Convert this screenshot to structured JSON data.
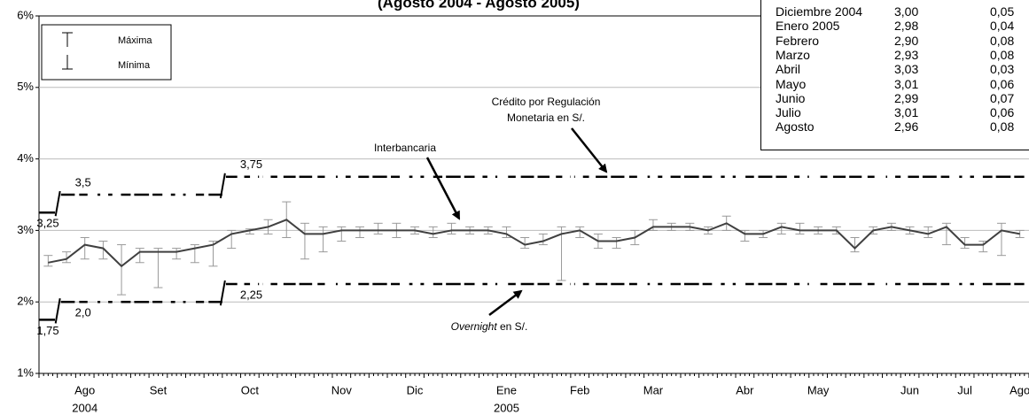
{
  "chart_data": {
    "type": "line",
    "title": "(Agosto 2004 - Agosto 2005)",
    "categories": [
      null,
      null,
      "Ago",
      null,
      null,
      null,
      "Set",
      null,
      null,
      null,
      null,
      "Oct",
      null,
      null,
      null,
      null,
      "Nov",
      null,
      null,
      null,
      "Dic",
      null,
      null,
      null,
      null,
      "Ene",
      null,
      null,
      null,
      "Feb",
      null,
      null,
      null,
      "Mar",
      null,
      null,
      null,
      null,
      "Abr",
      null,
      null,
      null,
      "May",
      null,
      null,
      null,
      null,
      "Jun",
      null,
      null,
      "Jul",
      null,
      null,
      "Ago"
    ],
    "category_years": [
      null,
      null,
      "2004",
      null,
      null,
      null,
      null,
      null,
      null,
      null,
      null,
      null,
      null,
      null,
      null,
      null,
      null,
      null,
      null,
      null,
      null,
      null,
      null,
      null,
      null,
      "2005",
      null,
      null,
      null,
      null,
      null,
      null,
      null,
      null,
      null,
      null,
      null,
      null,
      null,
      null,
      null,
      null,
      null,
      null,
      null,
      null,
      null,
      null,
      null,
      null,
      null,
      null,
      null,
      null
    ],
    "series": [
      {
        "color": "#404040",
        "values": [
          2.55,
          2.6,
          2.8,
          2.75,
          2.5,
          2.7,
          2.7,
          2.7,
          2.75,
          2.8,
          2.95,
          3.0,
          3.05,
          3.15,
          2.95,
          2.95,
          3.0,
          3.0,
          3.0,
          3.0,
          3.0,
          2.95,
          3.0,
          3.0,
          3.0,
          2.95,
          2.8,
          2.85,
          2.95,
          3.0,
          2.85,
          2.85,
          2.9,
          3.05,
          3.05,
          3.05,
          3.0,
          3.1,
          2.95,
          2.95,
          3.05,
          3.0,
          3.0,
          3.0,
          2.75,
          3.0,
          3.05,
          3.0,
          2.95,
          3.05,
          2.8,
          2.8,
          3.0,
          2.95
        ],
        "max": [
          2.65,
          2.7,
          2.9,
          2.85,
          2.8,
          2.75,
          2.75,
          2.75,
          2.8,
          2.85,
          3.0,
          3.02,
          3.15,
          3.4,
          3.1,
          3.05,
          3.05,
          3.05,
          3.1,
          3.1,
          3.05,
          3.05,
          3.1,
          3.05,
          3.05,
          3.05,
          2.9,
          2.95,
          3.05,
          3.05,
          2.95,
          2.9,
          3.0,
          3.15,
          3.1,
          3.1,
          3.05,
          3.2,
          3.0,
          3.0,
          3.1,
          3.1,
          3.05,
          3.05,
          2.9,
          3.05,
          3.1,
          3.05,
          3.05,
          3.1,
          2.9,
          2.85,
          3.1,
          3.0
        ],
        "min": [
          2.5,
          2.55,
          2.6,
          2.6,
          2.1,
          2.55,
          2.2,
          2.6,
          2.55,
          2.5,
          2.75,
          2.95,
          2.95,
          2.9,
          2.6,
          2.7,
          2.85,
          2.9,
          2.95,
          2.9,
          2.95,
          2.9,
          2.95,
          2.95,
          2.95,
          2.9,
          2.75,
          2.8,
          2.3,
          2.9,
          2.75,
          2.75,
          2.8,
          3.0,
          3.0,
          3.0,
          2.95,
          3.0,
          2.85,
          2.9,
          2.95,
          2.95,
          2.95,
          2.95,
          2.7,
          2.95,
          3.0,
          2.95,
          2.9,
          2.8,
          2.75,
          2.7,
          2.65,
          2.9
        ]
      },
      {
        "color": "#000000",
        "dashed": true,
        "values": [
          3.25,
          3.5,
          3.5,
          3.5,
          3.5,
          3.5,
          3.5,
          3.5,
          3.5,
          3.5,
          3.75,
          3.75,
          3.75,
          3.75,
          3.75,
          3.75,
          3.75,
          3.75,
          3.75,
          3.75,
          3.75,
          3.75,
          3.75,
          3.75,
          3.75,
          3.75,
          3.75,
          3.75,
          3.75,
          3.75,
          3.75,
          3.75,
          3.75,
          3.75,
          3.75,
          3.75,
          3.75,
          3.75,
          3.75,
          3.75,
          3.75,
          3.75,
          3.75,
          3.75,
          3.75,
          3.75,
          3.75,
          3.75,
          3.75,
          3.75,
          3.75,
          3.75,
          3.75,
          3.75
        ],
        "value_labels": [
          "3,25",
          "3,5",
          null,
          null,
          null,
          null,
          null,
          null,
          null,
          null,
          "3,75",
          null,
          null,
          null,
          null,
          null,
          null,
          null,
          null,
          null,
          null,
          null,
          null,
          null,
          null,
          null,
          null,
          null,
          null,
          null,
          null,
          null,
          null,
          null,
          null,
          null,
          null,
          null,
          null,
          null,
          null,
          null,
          null,
          null,
          null,
          null,
          null,
          null,
          null,
          null,
          null,
          null,
          null,
          null
        ]
      },
      {
        "color": "#000000",
        "dashed": true,
        "values": [
          1.75,
          2.0,
          2.0,
          2.0,
          2.0,
          2.0,
          2.0,
          2.0,
          2.0,
          2.0,
          2.25,
          2.25,
          2.25,
          2.25,
          2.25,
          2.25,
          2.25,
          2.25,
          2.25,
          2.25,
          2.25,
          2.25,
          2.25,
          2.25,
          2.25,
          2.25,
          2.25,
          2.25,
          2.25,
          2.25,
          2.25,
          2.25,
          2.25,
          2.25,
          2.25,
          2.25,
          2.25,
          2.25,
          2.25,
          2.25,
          2.25,
          2.25,
          2.25,
          2.25,
          2.25,
          2.25,
          2.25,
          2.25,
          2.25,
          2.25,
          2.25,
          2.25,
          2.25,
          2.25
        ],
        "value_labels": [
          "1,75",
          "2,0",
          null,
          null,
          null,
          null,
          null,
          null,
          null,
          null,
          "2,25",
          null,
          null,
          null,
          null,
          null,
          null,
          null,
          null,
          null,
          null,
          null,
          null,
          null,
          null,
          null,
          null,
          null,
          null,
          null,
          null,
          null,
          null,
          null,
          null,
          null,
          null,
          null,
          null,
          null,
          null,
          null,
          null,
          null,
          null,
          null,
          null,
          null,
          null,
          null,
          null,
          null,
          null,
          null
        ]
      }
    ],
    "ylim": [
      1,
      6
    ],
    "yticks": [
      {
        "value": 1,
        "label": "1%"
      },
      {
        "value": 2,
        "label": "2%"
      },
      {
        "value": 3,
        "label": "3%"
      },
      {
        "value": 4,
        "label": "4%"
      },
      {
        "value": 5,
        "label": "5%"
      },
      {
        "value": 6,
        "label": "6%"
      }
    ],
    "grid": true,
    "legend": {
      "max_label": "Máxima",
      "min_label": "Mínima"
    },
    "annotations": {
      "interbank": "Interbancaria",
      "credit": [
        "Crédito por Regulación",
        "Monetaria en S/."
      ],
      "overnight_italic": "Overnight",
      "overnight_rest": "en S/."
    }
  },
  "table": {
    "rows": [
      [
        "Diciembre 2004",
        "3,00",
        "0,05"
      ],
      [
        "Enero 2005",
        "2,98",
        "0,04"
      ],
      [
        "Febrero",
        "2,90",
        "0,08"
      ],
      [
        "Marzo",
        "2,93",
        "0,08"
      ],
      [
        "Abril",
        "3,03",
        "0,03"
      ],
      [
        "Mayo",
        "3,01",
        "0,06"
      ],
      [
        "Junio",
        "2,99",
        "0,07"
      ],
      [
        "Julio",
        "3,01",
        "0,06"
      ],
      [
        "Agosto",
        "2,96",
        "0,08"
      ]
    ]
  }
}
